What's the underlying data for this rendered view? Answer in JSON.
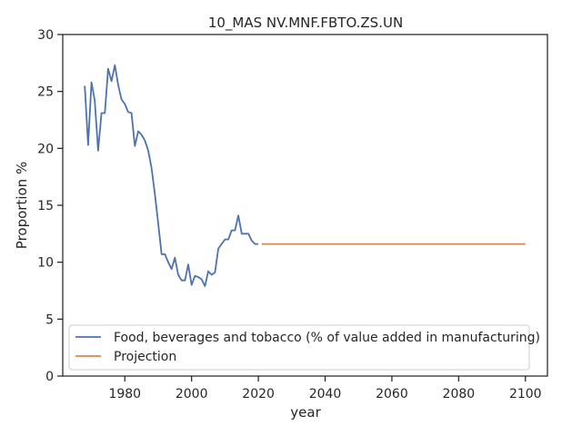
{
  "chart_data": {
    "type": "line",
    "title": "10_MAS NV.MNF.FBTO.ZS.UN",
    "xlabel": "year",
    "ylabel": "Proportion %",
    "xlim": [
      1961.4,
      2106.6
    ],
    "ylim": [
      0,
      30
    ],
    "xticks": [
      1980,
      2000,
      2020,
      2040,
      2060,
      2080,
      2100
    ],
    "yticks": [
      0,
      5,
      10,
      15,
      20,
      25,
      30
    ],
    "grid": false,
    "legend_position": "lower-left",
    "series": [
      {
        "name": "Food, beverages and tobacco (% of value added in manufacturing)",
        "color": "#4c72b0",
        "x": [
          1968,
          1969,
          1970,
          1971,
          1972,
          1973,
          1974,
          1975,
          1976,
          1977,
          1978,
          1979,
          1980,
          1981,
          1982,
          1983,
          1984,
          1985,
          1986,
          1987,
          1988,
          1989,
          1990,
          1991,
          1992,
          1993,
          1994,
          1995,
          1996,
          1997,
          1998,
          1999,
          2000,
          2001,
          2002,
          2003,
          2004,
          2005,
          2006,
          2007,
          2008,
          2009,
          2010,
          2011,
          2012,
          2013,
          2014,
          2015,
          2016,
          2017,
          2018,
          2019,
          2020
        ],
        "y": [
          25.5,
          20.3,
          25.8,
          24.2,
          19.8,
          23.1,
          23.1,
          27.0,
          25.9,
          27.3,
          25.6,
          24.3,
          23.9,
          23.2,
          23.1,
          20.2,
          21.5,
          21.2,
          20.7,
          19.8,
          18.3,
          16.0,
          13.4,
          10.7,
          10.7,
          10.0,
          9.4,
          10.4,
          8.9,
          8.4,
          8.4,
          9.8,
          8.0,
          8.8,
          8.7,
          8.5,
          7.9,
          9.2,
          8.9,
          9.1,
          11.2,
          11.6,
          12.0,
          12.0,
          12.8,
          12.8,
          14.1,
          12.5,
          12.5,
          12.5,
          11.9,
          11.6,
          11.6
        ]
      },
      {
        "name": "Projection",
        "color": "#dd8452",
        "x": [
          2021,
          2100
        ],
        "y": [
          11.6,
          11.6
        ]
      }
    ]
  }
}
